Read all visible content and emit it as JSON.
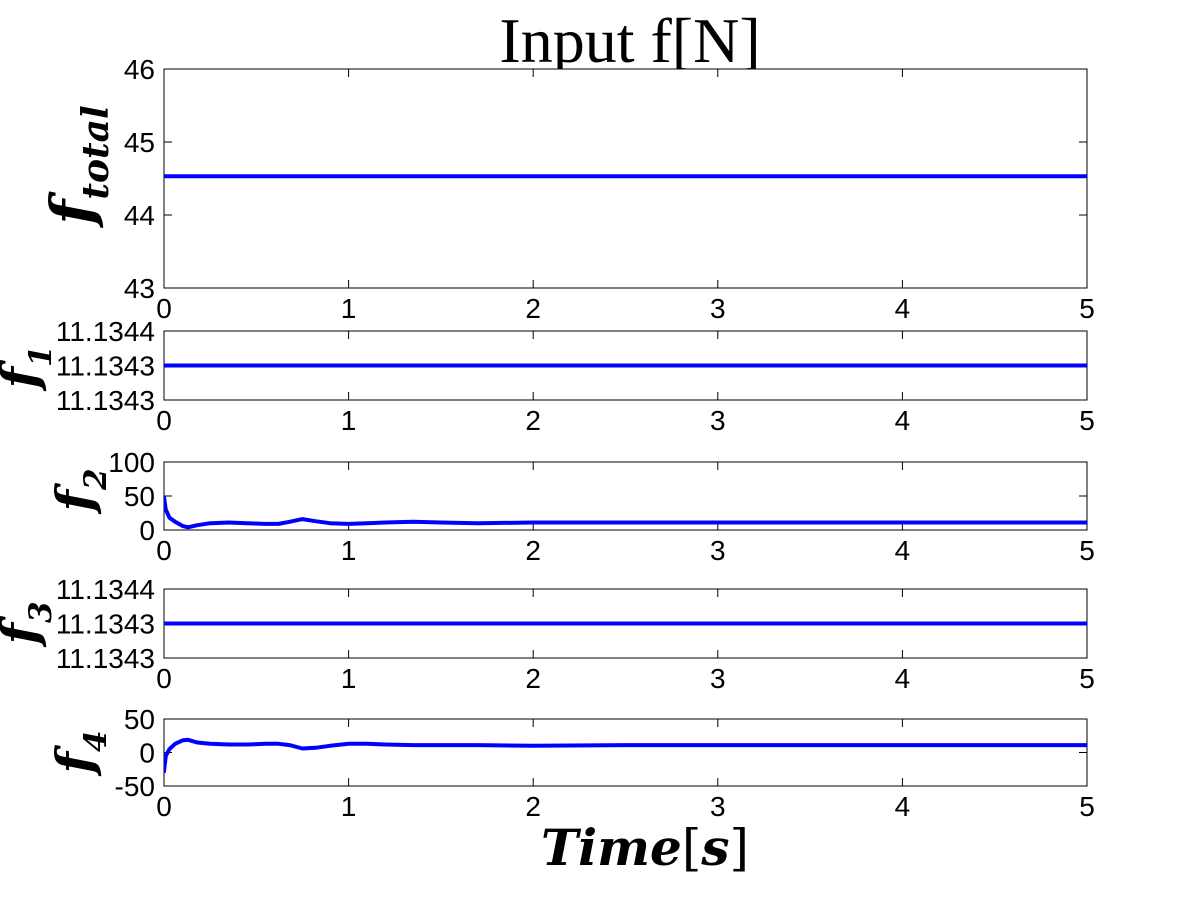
{
  "figure": {
    "title": "Input f[N]",
    "xlabel": {
      "main": "Time",
      "open": "[",
      "unit": "s",
      "close": "]"
    }
  },
  "chart_data": [
    {
      "type": "line",
      "ylabel": {
        "base": "f",
        "sub": "total"
      },
      "xlim": [
        0,
        5
      ],
      "ylim": [
        43,
        46
      ],
      "xticks": [
        0,
        1,
        2,
        3,
        4,
        5
      ],
      "yticks": [
        43,
        44,
        45,
        46
      ],
      "ytick_labels": [
        "43",
        "44",
        "45",
        "46"
      ],
      "grid": false,
      "series": [
        {
          "color": "#0000ff",
          "x": [
            0,
            5
          ],
          "y": [
            44.53,
            44.53
          ]
        }
      ]
    },
    {
      "type": "line",
      "ylabel": {
        "base": "f",
        "sub": "1"
      },
      "xlim": [
        0,
        5
      ],
      "ylim": [
        11.13425,
        11.13435
      ],
      "xticks": [
        0,
        1,
        2,
        3,
        4,
        5
      ],
      "yticks": [
        11.13425,
        11.1343,
        11.13435
      ],
      "ytick_labels": [
        "11.1343",
        "11.1343",
        "11.1344"
      ],
      "grid": false,
      "series": [
        {
          "color": "#0000ff",
          "x": [
            0,
            5
          ],
          "y": [
            11.1343,
            11.1343
          ]
        }
      ]
    },
    {
      "type": "line",
      "ylabel": {
        "base": "f",
        "sub": "2"
      },
      "xlim": [
        0,
        5
      ],
      "ylim": [
        0,
        100
      ],
      "xticks": [
        0,
        1,
        2,
        3,
        4,
        5
      ],
      "yticks": [
        0,
        50,
        100
      ],
      "ytick_labels": [
        "0",
        "50",
        "100"
      ],
      "grid": false,
      "series": [
        {
          "color": "#0000ff",
          "x": [
            0,
            0.01,
            0.03,
            0.06,
            0.1,
            0.13,
            0.18,
            0.25,
            0.35,
            0.45,
            0.55,
            0.62,
            0.68,
            0.75,
            0.82,
            0.9,
            1.0,
            1.1,
            1.2,
            1.35,
            1.5,
            1.7,
            2.0,
            2.5,
            3.0,
            3.5,
            4.0,
            4.5,
            5.0
          ],
          "y": [
            48,
            30,
            18,
            12,
            6,
            4,
            7,
            10,
            11,
            10,
            9,
            9,
            12,
            16,
            13,
            10,
            9,
            10,
            11,
            12,
            11,
            10,
            11,
            11,
            11,
            11,
            11,
            11,
            11
          ]
        }
      ]
    },
    {
      "type": "line",
      "ylabel": {
        "base": "f",
        "sub": "3"
      },
      "xlim": [
        0,
        5
      ],
      "ylim": [
        11.13425,
        11.13435
      ],
      "xticks": [
        0,
        1,
        2,
        3,
        4,
        5
      ],
      "yticks": [
        11.13425,
        11.1343,
        11.13435
      ],
      "ytick_labels": [
        "11.1343",
        "11.1343",
        "11.1344"
      ],
      "grid": false,
      "series": [
        {
          "color": "#0000ff",
          "x": [
            0,
            5
          ],
          "y": [
            11.1343,
            11.1343
          ]
        }
      ]
    },
    {
      "type": "line",
      "ylabel": {
        "base": "f",
        "sub": "4"
      },
      "xlim": [
        0,
        5
      ],
      "ylim": [
        -50,
        50
      ],
      "xticks": [
        0,
        1,
        2,
        3,
        4,
        5
      ],
      "yticks": [
        -50,
        0,
        50
      ],
      "ytick_labels": [
        "-50",
        "0",
        "50"
      ],
      "grid": false,
      "series": [
        {
          "color": "#0000ff",
          "x": [
            0,
            0.01,
            0.03,
            0.06,
            0.1,
            0.13,
            0.18,
            0.25,
            0.35,
            0.45,
            0.55,
            0.62,
            0.68,
            0.75,
            0.82,
            0.9,
            1.0,
            1.1,
            1.2,
            1.35,
            1.5,
            1.7,
            2.0,
            2.5,
            3.0,
            3.5,
            4.0,
            4.5,
            5.0
          ],
          "y": [
            -28,
            -5,
            5,
            13,
            18,
            19,
            15,
            13,
            12,
            12,
            13,
            13,
            11,
            6,
            7,
            10,
            13,
            13,
            12,
            11,
            11,
            11,
            10,
            11,
            11,
            11,
            11,
            11,
            11
          ]
        }
      ]
    }
  ]
}
